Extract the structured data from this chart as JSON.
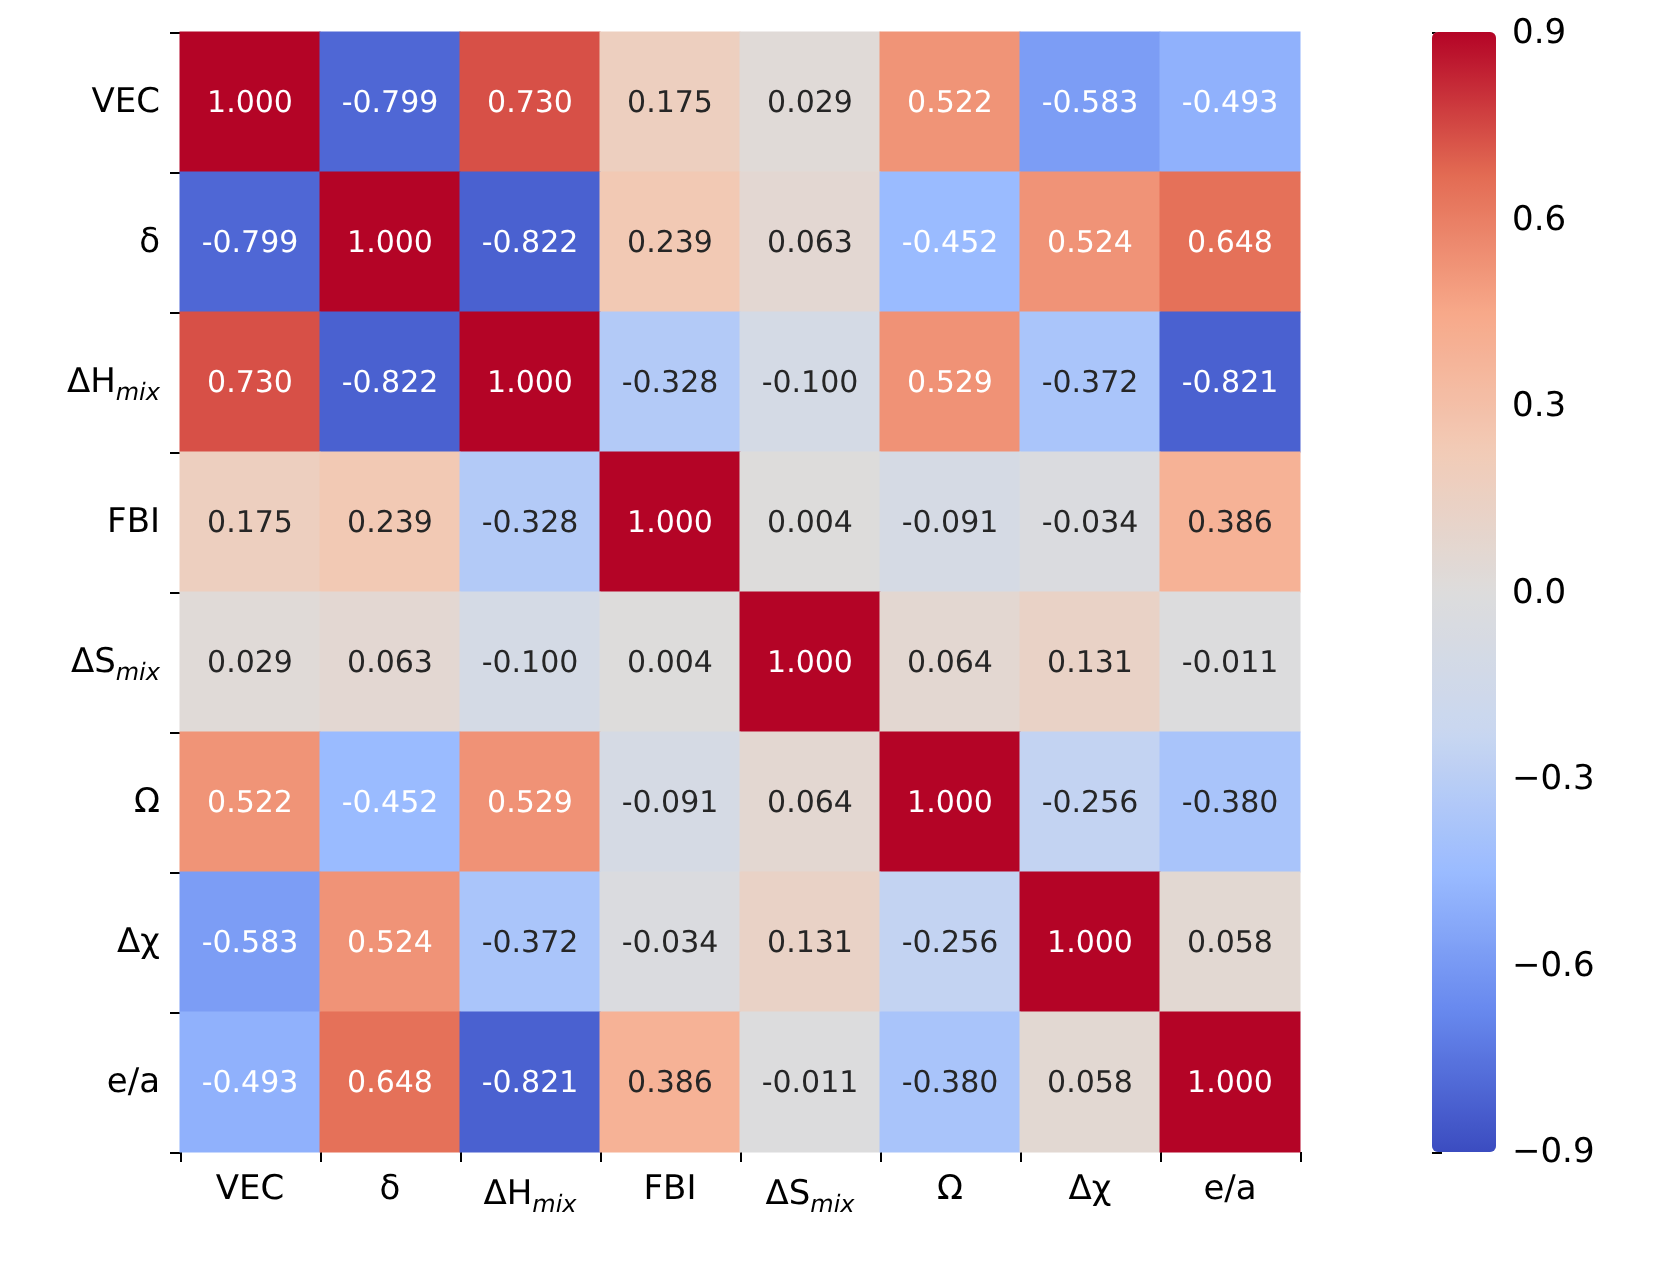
{
  "chart_data": {
    "type": "heatmap",
    "categories": [
      "VEC",
      "δ",
      "ΔH$_{mix}$",
      "FBI",
      "ΔS$_{mix}$",
      "Ω",
      "Δχ",
      "e/a"
    ],
    "y_categories": [
      "VEC",
      "δ",
      "ΔH$_{mix}$",
      "FBI",
      "ΔS$_{mix}$",
      "Ω",
      "Δχ",
      "e/a"
    ],
    "cells": [
      [
        1.0,
        -0.799,
        0.73,
        0.175,
        0.029,
        0.522,
        -0.583,
        -0.493
      ],
      [
        -0.799,
        1.0,
        -0.822,
        0.239,
        0.063,
        -0.452,
        0.524,
        0.648
      ],
      [
        0.73,
        -0.822,
        1.0,
        -0.328,
        -0.1,
        0.529,
        -0.372,
        -0.821
      ],
      [
        0.175,
        0.239,
        -0.328,
        1.0,
        0.004,
        -0.091,
        -0.034,
        0.386
      ],
      [
        0.029,
        0.063,
        -0.1,
        0.004,
        1.0,
        0.064,
        0.131,
        -0.011
      ],
      [
        0.522,
        -0.452,
        0.529,
        -0.091,
        0.064,
        1.0,
        -0.256,
        -0.38
      ],
      [
        -0.583,
        0.524,
        -0.372,
        -0.034,
        0.131,
        -0.256,
        1.0,
        0.058
      ],
      [
        -0.493,
        0.648,
        -0.821,
        0.386,
        -0.011,
        -0.38,
        0.058,
        1.0
      ]
    ],
    "cell_labels": [
      [
        "1.000",
        "-0.799",
        "0.730",
        "0.175",
        "0.029",
        "0.522",
        "-0.583",
        "-0.493"
      ],
      [
        "-0.799",
        "1.000",
        "-0.822",
        "0.239",
        "0.063",
        "-0.452",
        "0.524",
        "0.648"
      ],
      [
        "0.730",
        "-0.822",
        "1.000",
        "-0.328",
        "-0.100",
        "0.529",
        "-0.372",
        "-0.821"
      ],
      [
        "0.175",
        "0.239",
        "-0.328",
        "1.000",
        "0.004",
        "-0.091",
        "-0.034",
        "0.386"
      ],
      [
        "0.029",
        "0.063",
        "-0.100",
        "0.004",
        "1.000",
        "0.064",
        "0.131",
        "-0.011"
      ],
      [
        "0.522",
        "-0.452",
        "0.529",
        "-0.091",
        "0.064",
        "1.000",
        "-0.256",
        "-0.380"
      ],
      [
        "-0.583",
        "0.524",
        "-0.372",
        "-0.034",
        "0.131",
        "-0.256",
        "1.000",
        "0.058"
      ],
      [
        "-0.493",
        "0.648",
        "-0.821",
        "0.386",
        "-0.011",
        "-0.380",
        "0.058",
        "1.000"
      ]
    ],
    "clim": [
      -0.9,
      0.9
    ],
    "cticks": [
      {
        "value": -0.9,
        "label": "−0.9"
      },
      {
        "value": -0.6,
        "label": "−0.6"
      },
      {
        "value": -0.3,
        "label": "−0.3"
      },
      {
        "value": 0,
        "label": "0.0"
      },
      0.3,
      0.6,
      0.9
    ]
  }
}
